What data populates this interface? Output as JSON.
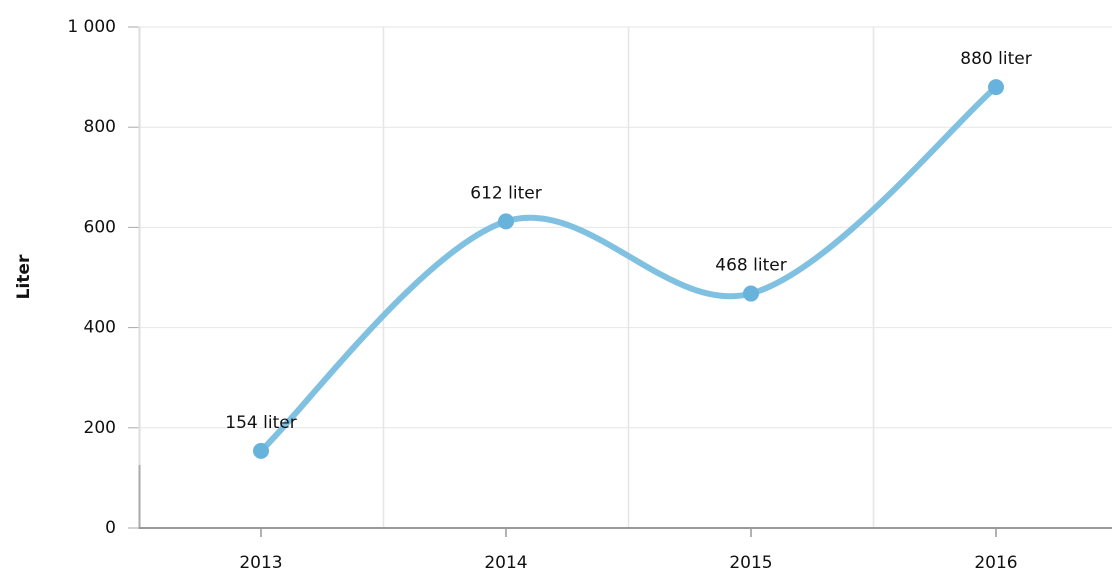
{
  "chart_data": {
    "type": "line",
    "y_label": "Liter",
    "categories": [
      "2013",
      "2014",
      "2015",
      "2016"
    ],
    "values": [
      154,
      612,
      468,
      880
    ],
    "value_labels": [
      "154 liter",
      "612 liter",
      "468 liter",
      "880 liter"
    ],
    "color": "#80c1e1",
    "marker_color": "#68b3dc",
    "smooth": true,
    "grid": true,
    "ylim": [
      0,
      1000
    ],
    "yticks": [
      0,
      200,
      400,
      600,
      800,
      {
        "value": 1000,
        "label": "1 000"
      }
    ]
  }
}
